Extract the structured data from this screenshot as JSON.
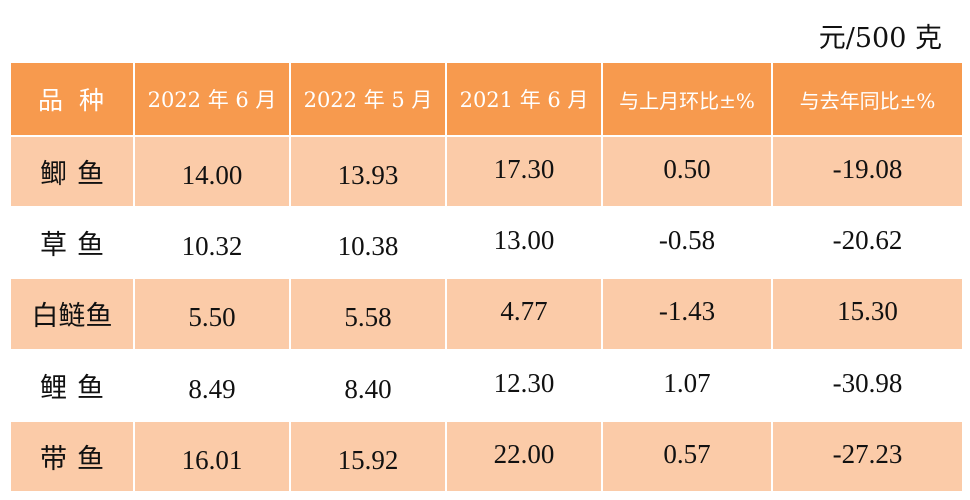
{
  "unit_label": "元/500 克",
  "table": {
    "headers": [
      "品种",
      "2022 年 6 月",
      "2022 年 5 月",
      "2021 年 6 月",
      "与上月环比±%",
      "与去年同比±%"
    ],
    "rows": [
      {
        "name": "鲫鱼",
        "values": [
          "14.00",
          "13.93",
          "17.30",
          "0.50",
          "-19.08"
        ]
      },
      {
        "name": "草鱼",
        "values": [
          "10.32",
          "10.38",
          "13.00",
          "-0.58",
          "-20.62"
        ]
      },
      {
        "name": "白鲢鱼",
        "values": [
          "5.50",
          "5.58",
          "4.77",
          "-1.43",
          "15.30"
        ]
      },
      {
        "name": "鲤鱼",
        "values": [
          "8.49",
          "8.40",
          "12.30",
          "1.07",
          "-30.98"
        ]
      },
      {
        "name": "带鱼",
        "values": [
          "16.01",
          "15.92",
          "22.00",
          "0.57",
          "-27.23"
        ]
      }
    ]
  },
  "colors": {
    "header_bg": "#f79a4e",
    "row_odd_bg": "#fbcba8",
    "row_even_bg": "#ffffff"
  }
}
